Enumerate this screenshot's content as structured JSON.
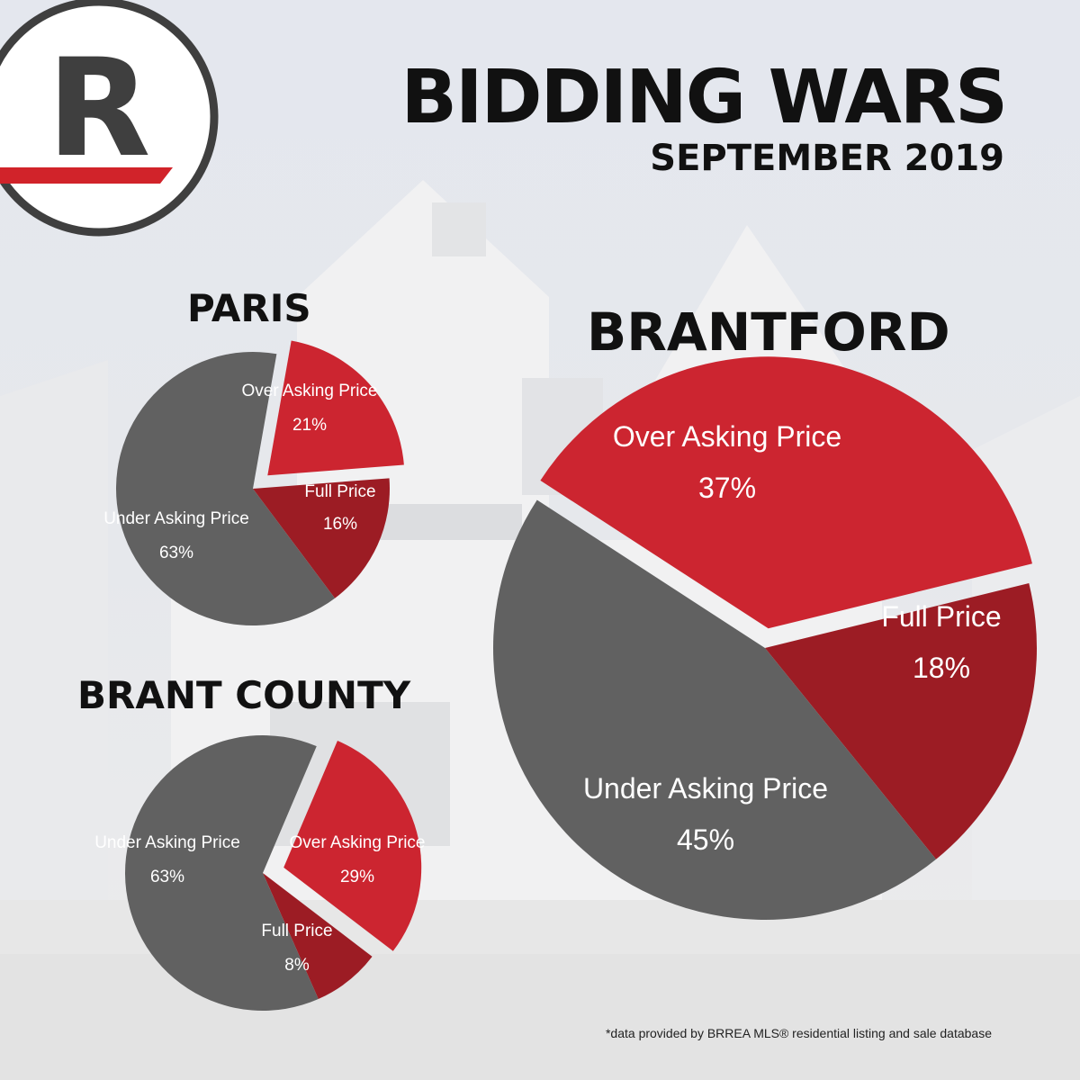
{
  "header": {
    "logo_letter": "R",
    "title": "BIDDING WARS",
    "subtitle": "SEPTEMBER 2019"
  },
  "colors": {
    "over_asking": "#cc2530",
    "full_price": "#9c1c24",
    "under_asking": "#616161",
    "brand_red": "#d1232a",
    "ring": "#3f3f3f"
  },
  "chart_data": [
    {
      "type": "pie",
      "title": "PARIS",
      "slices": [
        {
          "label": "Over Asking Price",
          "value": 21,
          "display": "21%"
        },
        {
          "label": "Full Price",
          "value": 16,
          "display": "16%"
        },
        {
          "label": "Under Asking Price",
          "value": 63,
          "display": "63%"
        }
      ]
    },
    {
      "type": "pie",
      "title": "BRANT COUNTY",
      "slices": [
        {
          "label": "Over Asking Price",
          "value": 29,
          "display": "29%"
        },
        {
          "label": "Full Price",
          "value": 8,
          "display": "8%"
        },
        {
          "label": "Under Asking Price",
          "value": 63,
          "display": "63%"
        }
      ]
    },
    {
      "type": "pie",
      "title": "BRANTFORD",
      "slices": [
        {
          "label": "Over Asking Price",
          "value": 37,
          "display": "37%"
        },
        {
          "label": "Full Price",
          "value": 18,
          "display": "18%"
        },
        {
          "label": "Under Asking Price",
          "value": 45,
          "display": "45%"
        }
      ]
    }
  ],
  "footnote": "*data provided by BRREA MLS® residential listing and sale database"
}
